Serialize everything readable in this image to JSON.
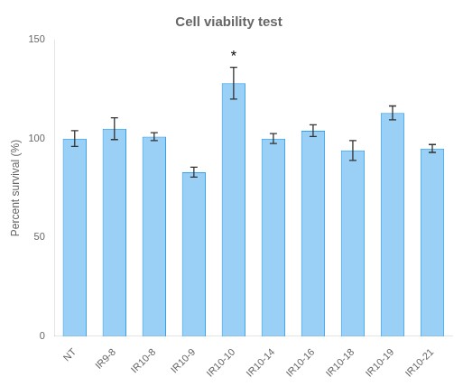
{
  "chart_data": {
    "type": "bar",
    "title": "Cell viability test",
    "ylabel": "Percent survival (%)",
    "categories": [
      "NT",
      "IR9-8",
      "IR10-8",
      "IR10-9",
      "IR10-10",
      "IR10-14",
      "IR10-16",
      "IR10-18",
      "IR10-19",
      "IR10-21"
    ],
    "values": [
      100,
      105,
      101,
      83,
      128,
      100,
      104,
      94,
      113,
      95
    ],
    "errors": [
      4,
      5.5,
      2,
      2.5,
      8,
      2.5,
      3,
      5,
      3.5,
      2
    ],
    "ylim": [
      0,
      150
    ],
    "yticks": [
      0,
      50,
      100,
      150
    ],
    "grid": false,
    "annotations": [
      {
        "text": "*",
        "category": "IR10-10"
      }
    ]
  }
}
